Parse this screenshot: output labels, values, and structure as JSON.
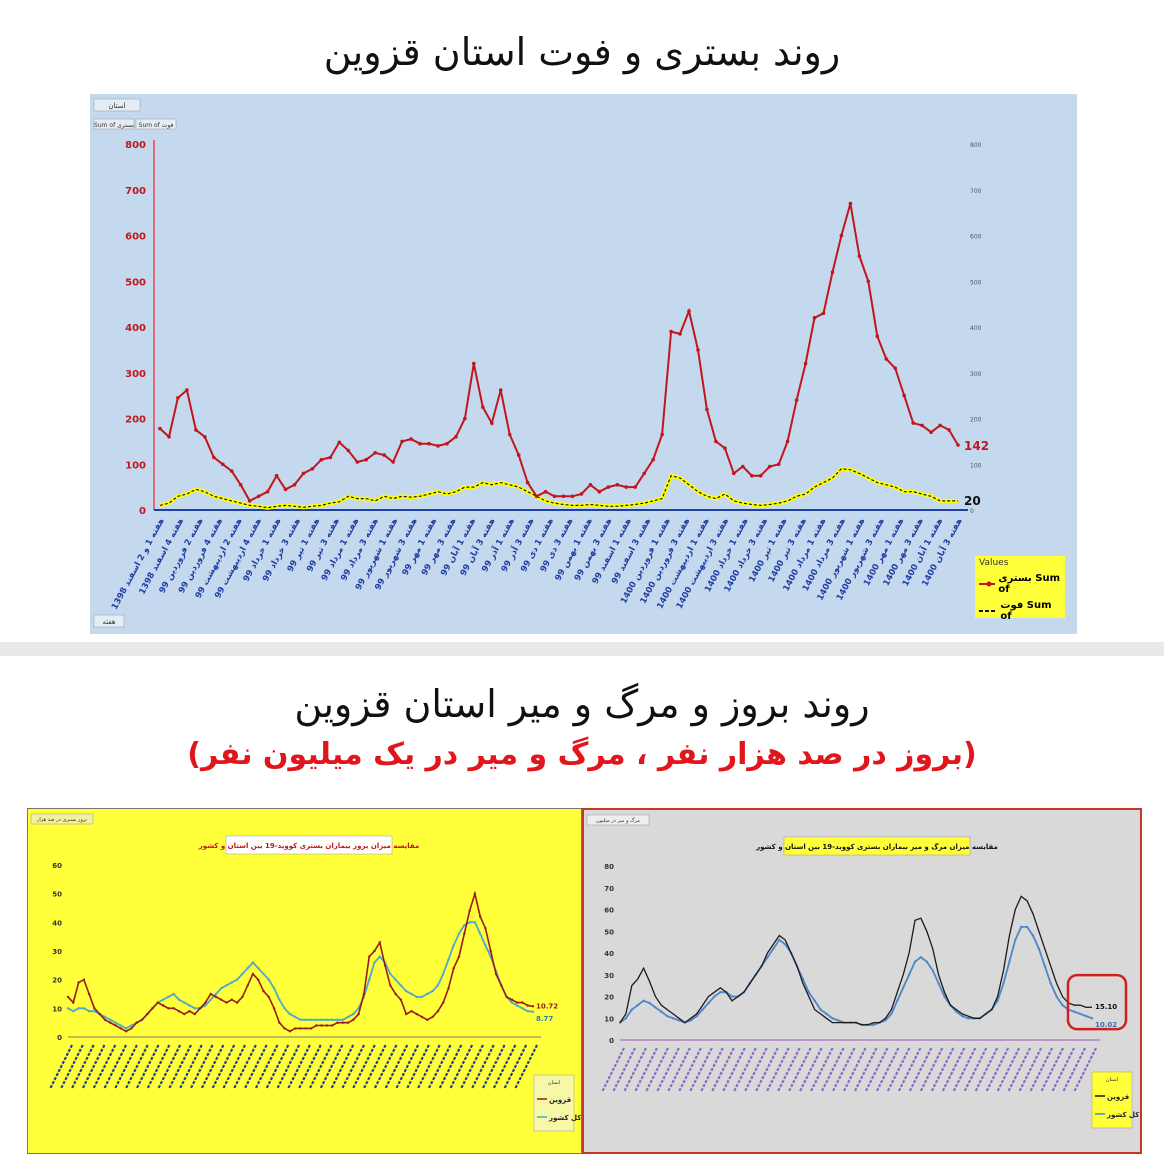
{
  "titles": {
    "top": "روند بستری و فوت استان قزوین",
    "middle": "روند بروز و مرگ و میر استان قزوین",
    "subtitle": "(بروز در صد هزار نفر ، مرگ و میر در یک میلیون نفر)"
  },
  "colors": {
    "hosp": "#c0161c",
    "death": "#1b1b1b",
    "death_fill": "#ffff00",
    "qazvin_inc": "#9b1b1b",
    "country_inc": "#4fa9c9",
    "qazvin_mort": "#1b1b1b",
    "country_mort": "#4f86c9"
  },
  "chart_data": [
    {
      "type": "line",
      "legend": {
        "title": "Values",
        "hosp": "بستری Sum of",
        "death": "فوت Sum of"
      },
      "filter_labels": {
        "top": "استان",
        "sum_hosp": "Sum of  بستری",
        "sum_death": "Sum of  فوت",
        "bottom": "هفته"
      },
      "ylim": [
        0,
        800
      ],
      "yticks": [
        0,
        100,
        200,
        300,
        400,
        500,
        600,
        700,
        800
      ],
      "end_labels": {
        "hosp": "142",
        "death": "20"
      },
      "x_labels": [
        "هفته 1 و 2 اسفند 1398",
        "هفته 4 اسفند 1398",
        "هفته 2 فروردین 99",
        "هفته 4 فروردین 99",
        "هفته 2 اردیبهشت 99",
        "هفته 4 اردیبهشت 99",
        "هفته 1 خرداد 99",
        "هفته 3 خرداد 99",
        "هفته 1 تیر 99",
        "هفته 3 تیر 99",
        "هفته 1 مرداد 99",
        "هفته 3 مرداد 99",
        "هفته 1 شهریور 99",
        "هفته 3 شهریور 99",
        "هفته 1 مهر 99",
        "هفته 3 مهر 99",
        "هفته 1 آبان 99",
        "هفته 3 آبان 99",
        "هفته 1 آذر 99",
        "هفته 3 آذر 99",
        "هفته 1 دی 99",
        "هفته 3 دی 99",
        "هفته 1 بهمن 99",
        "هفته 3 بهمن 99",
        "هفته 1 اسفند 99",
        "هفته 3 اسفند 99",
        "هفته 1 فروردین 1400",
        "هفته 3 فروردین 1400",
        "هفته 1 اردیبهشت 1400",
        "هفته 3 اردیبهشت 1400",
        "هفته 1 خرداد 1400",
        "هفته 3 خرداد 1400",
        "هفته 1 تیر 1400",
        "هفته 3 تیر 1400",
        "هفته 1 مرداد 1400",
        "هفته 3 مرداد 1400",
        "هفته 1 شهریور 1400",
        "هفته 3 شهریور 1400",
        "هفته 1 مهر 1400",
        "هفته 3 مهر 1400",
        "هفته 1 آبان 1400",
        "هفته 3 آبان 1400"
      ],
      "series": [
        {
          "name": "بستری Sum of",
          "values": [
            178,
            160,
            245,
            262,
            175,
            160,
            115,
            100,
            85,
            55,
            20,
            30,
            40,
            75,
            45,
            55,
            80,
            90,
            110,
            115,
            148,
            130,
            105,
            110,
            125,
            120,
            105,
            150,
            155,
            145,
            145,
            140,
            145,
            160,
            200,
            320,
            225,
            190,
            262,
            165,
            120,
            60,
            30,
            40,
            30,
            30,
            30,
            35,
            55,
            40,
            50,
            55,
            50,
            50,
            80,
            110,
            165,
            390,
            385,
            435,
            350,
            220,
            150,
            135,
            80,
            95,
            75,
            75,
            95,
            100,
            150,
            240,
            320,
            420,
            430,
            520,
            600,
            670,
            555,
            500,
            380,
            330,
            310,
            250,
            190,
            185,
            170,
            185,
            175,
            142
          ]
        },
        {
          "name": "فوت Sum of",
          "values": [
            10,
            15,
            30,
            35,
            45,
            40,
            30,
            25,
            20,
            15,
            10,
            8,
            5,
            8,
            10,
            8,
            6,
            8,
            10,
            15,
            18,
            30,
            25,
            25,
            20,
            30,
            25,
            30,
            28,
            30,
            35,
            40,
            35,
            40,
            50,
            50,
            60,
            55,
            60,
            55,
            50,
            40,
            30,
            20,
            15,
            12,
            10,
            10,
            12,
            10,
            8,
            8,
            10,
            12,
            15,
            20,
            25,
            75,
            70,
            55,
            40,
            30,
            25,
            35,
            20,
            15,
            12,
            10,
            12,
            15,
            20,
            30,
            35,
            50,
            60,
            70,
            90,
            88,
            80,
            70,
            60,
            55,
            50,
            40,
            40,
            35,
            30,
            20,
            20,
            20
          ]
        }
      ]
    },
    {
      "type": "line",
      "title": "مقایسه میزان بروز بیماران بستری کووید-19 بین استان و کشور",
      "header_tag": "بروز بستری در صد هزار",
      "ylim": [
        0,
        60
      ],
      "yticks": [
        0,
        10,
        20,
        30,
        40,
        50,
        60
      ],
      "end_labels": {
        "qazvin": "10.72",
        "country": "8.77"
      },
      "legend": {
        "title": "استان",
        "qazvin": "قزوین",
        "country": "کل کشور"
      },
      "series": [
        {
          "name": "قزوین",
          "values": [
            14,
            12,
            19,
            20,
            15,
            10,
            8,
            6,
            5,
            4,
            3,
            2,
            3,
            5,
            6,
            8,
            10,
            12,
            11,
            10,
            10,
            9,
            8,
            9,
            8,
            10,
            12,
            15,
            14,
            13,
            12,
            13,
            12,
            14,
            18,
            22,
            20,
            16,
            14,
            10,
            5,
            3,
            2,
            3,
            3,
            3,
            3,
            4,
            4,
            4,
            4,
            5,
            5,
            5,
            6,
            8,
            15,
            28,
            30,
            33,
            25,
            18,
            15,
            13,
            8,
            9,
            8,
            7,
            6,
            7,
            9,
            12,
            17,
            24,
            28,
            36,
            44,
            50,
            42,
            38,
            30,
            22,
            18,
            14,
            13,
            12,
            12,
            11,
            10.72
          ]
        },
        {
          "name": "کل کشور",
          "values": [
            10,
            9,
            10,
            10,
            9,
            9,
            8,
            7,
            6,
            5,
            4,
            3,
            4,
            5,
            6,
            8,
            10,
            12,
            13,
            14,
            15,
            13,
            12,
            11,
            10,
            10,
            11,
            13,
            15,
            17,
            18,
            19,
            20,
            22,
            24,
            26,
            24,
            22,
            20,
            17,
            13,
            10,
            8,
            7,
            6,
            6,
            6,
            6,
            6,
            6,
            6,
            6,
            6,
            7,
            8,
            10,
            14,
            20,
            26,
            28,
            26,
            22,
            20,
            18,
            16,
            15,
            14,
            14,
            15,
            16,
            18,
            22,
            27,
            32,
            36,
            39,
            40,
            40,
            36,
            32,
            28,
            23,
            18,
            14,
            12,
            11,
            10,
            9,
            8.77
          ]
        }
      ]
    },
    {
      "type": "line",
      "title": "مقایسه میزان مرگ و میر بیماران بستری کووید-19 بین استان و کشور",
      "header_tag": "مرگ و میر در میلیون",
      "ylim": [
        0,
        80
      ],
      "yticks": [
        0,
        10,
        20,
        30,
        40,
        50,
        60,
        70,
        80
      ],
      "end_labels": {
        "qazvin": "15.10",
        "country": "10.02"
      },
      "legend": {
        "title": "استان",
        "qazvin": "قزوین",
        "country": "کل کشور"
      },
      "series": [
        {
          "name": "قزوین",
          "values": [
            8,
            12,
            25,
            28,
            33,
            27,
            20,
            16,
            14,
            12,
            10,
            8,
            10,
            12,
            16,
            20,
            22,
            24,
            22,
            18,
            20,
            22,
            26,
            30,
            34,
            40,
            44,
            48,
            46,
            40,
            34,
            26,
            20,
            14,
            12,
            10,
            8,
            8,
            8,
            8,
            8,
            7,
            7,
            8,
            8,
            10,
            14,
            22,
            30,
            40,
            55,
            56,
            50,
            42,
            30,
            22,
            16,
            14,
            12,
            11,
            10,
            10,
            12,
            14,
            20,
            32,
            48,
            60,
            66,
            64,
            58,
            50,
            42,
            34,
            26,
            20,
            17,
            16,
            16,
            15,
            15.1
          ]
        },
        {
          "name": "کل کشور",
          "values": [
            8,
            10,
            14,
            16,
            18,
            17,
            15,
            13,
            11,
            10,
            9,
            8,
            9,
            11,
            14,
            17,
            20,
            22,
            22,
            20,
            20,
            22,
            26,
            30,
            34,
            38,
            42,
            46,
            44,
            40,
            34,
            28,
            22,
            18,
            14,
            12,
            10,
            9,
            8,
            8,
            8,
            7,
            7,
            7,
            8,
            9,
            12,
            18,
            24,
            30,
            36,
            38,
            36,
            32,
            26,
            20,
            16,
            13,
            11,
            10,
            10,
            10,
            12,
            14,
            18,
            26,
            36,
            46,
            52,
            52,
            48,
            42,
            34,
            26,
            20,
            16,
            14,
            13,
            12,
            11,
            10.02
          ]
        }
      ]
    }
  ]
}
